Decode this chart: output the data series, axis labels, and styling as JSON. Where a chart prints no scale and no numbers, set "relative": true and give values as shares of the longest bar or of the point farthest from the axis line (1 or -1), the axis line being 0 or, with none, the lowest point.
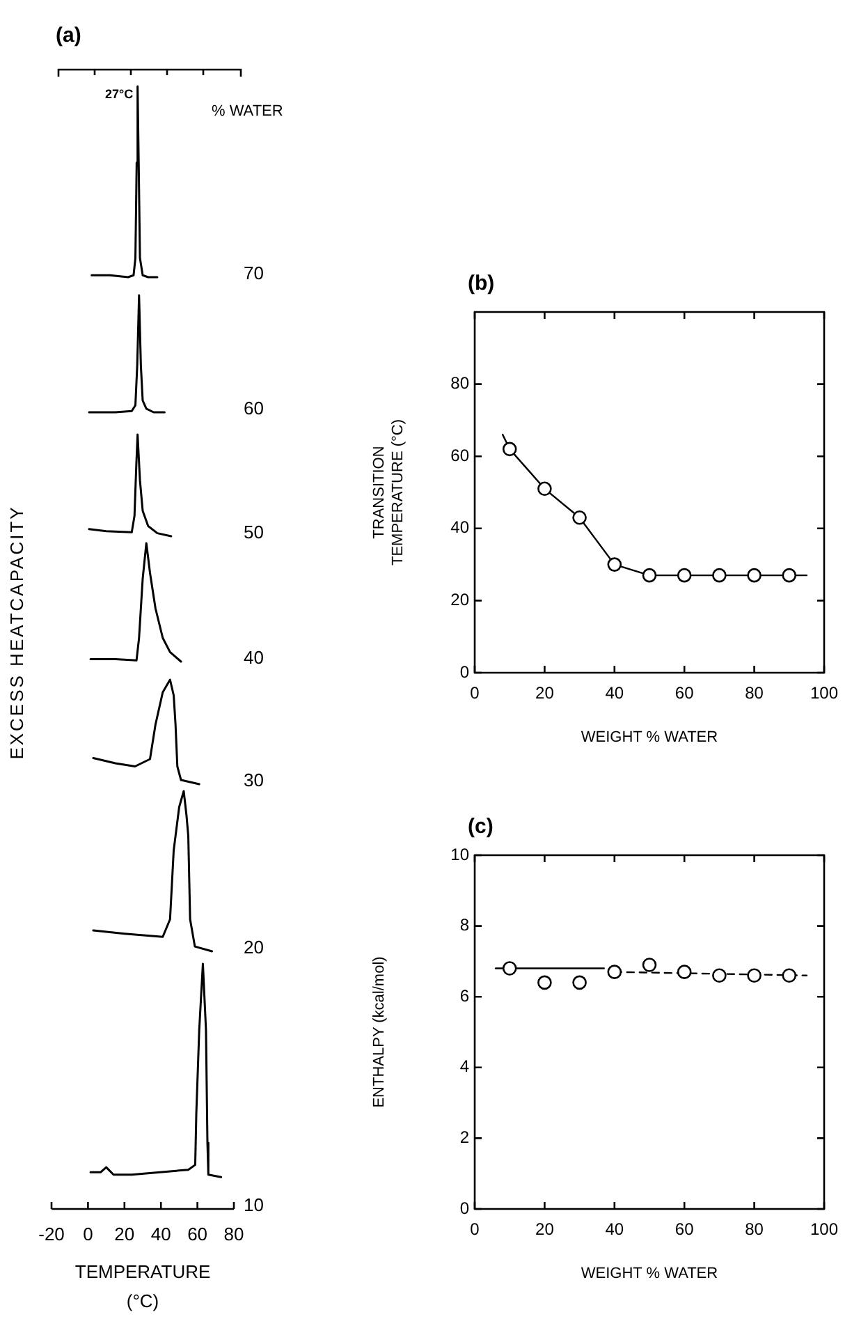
{
  "chart_data": [
    {
      "type": "line",
      "title": "(a)",
      "relative": true,
      "xlim": [
        -20,
        80
      ],
      "tick_labels": false,
      "annotations": [
        {
          "text": "27°C",
          "x": 27
        },
        "% WATER"
      ],
      "series": [
        {
          "name": "70",
          "color": "#000000",
          "x": [
            2,
            12,
            22,
            25,
            26,
            26.7,
            27.2,
            27.8,
            28.5,
            30,
            33,
            38
          ],
          "values": [
            0.01,
            0.01,
            0,
            0.01,
            0.1,
            0.6,
            1,
            0.6,
            0.1,
            0.01,
            0,
            0
          ]
        }
      ]
    },
    {
      "type": "line",
      "relative": true,
      "xlim": [
        -20,
        80
      ],
      "tick_labels": false,
      "series": [
        {
          "name": "60",
          "color": "#000000",
          "x": [
            0.6,
            15,
            24,
            26,
            27,
            28,
            29,
            30,
            32,
            36,
            42
          ],
          "values": [
            0,
            0,
            0.01,
            0.06,
            0.4,
            1,
            0.4,
            0.1,
            0.03,
            0,
            0
          ]
        }
      ]
    },
    {
      "type": "line",
      "relative": true,
      "xlim": [
        -20,
        80
      ],
      "tick_labels": false,
      "series": [
        {
          "name": "50",
          "color": "#000000",
          "x": [
            0.6,
            10,
            24,
            25.5,
            26.5,
            27.2,
            28.5,
            30,
            33,
            38,
            45.6
          ],
          "values": [
            0.07,
            0.05,
            0.04,
            0.2,
            0.7,
            1,
            0.55,
            0.25,
            0.1,
            0.03,
            0
          ]
        }
      ]
    },
    {
      "type": "line",
      "relative": true,
      "xlim": [
        -20,
        80
      ],
      "tick_labels": false,
      "ylabel": "EXCESS HEATCAPACITY",
      "series": [
        {
          "name": "40",
          "color": "#000000",
          "x": [
            1.4,
            15,
            26.6,
            28,
            30,
            32,
            34,
            37,
            41,
            45,
            51
          ],
          "values": [
            0.02,
            0.02,
            0.01,
            0.2,
            0.7,
            1,
            0.75,
            0.45,
            0.2,
            0.08,
            0
          ]
        }
      ]
    },
    {
      "type": "line",
      "relative": true,
      "xlim": [
        -20,
        80
      ],
      "tick_labels": false,
      "series": [
        {
          "name": "30",
          "color": "#000000",
          "x": [
            2.9,
            15,
            25.8,
            34,
            37,
            41,
            45,
            47,
            48,
            49,
            51,
            61
          ],
          "values": [
            0.25,
            0.2,
            0.17,
            0.24,
            0.57,
            0.88,
            1,
            0.85,
            0.57,
            0.17,
            0.04,
            0
          ]
        }
      ]
    },
    {
      "type": "line",
      "relative": true,
      "xlim": [
        -20,
        80
      ],
      "tick_labels": false,
      "series": [
        {
          "name": "20",
          "color": "#000000",
          "x": [
            2.9,
            20,
            41,
            45,
            47,
            50,
            52.5,
            54,
            55,
            56,
            58.6,
            68
          ],
          "values": [
            0.13,
            0.11,
            0.09,
            0.2,
            0.63,
            0.9,
            1,
            0.85,
            0.72,
            0.2,
            0.03,
            0
          ]
        }
      ]
    },
    {
      "type": "line",
      "relative": true,
      "xlim": [
        -20,
        80
      ],
      "xticks": [
        -20,
        0,
        20,
        40,
        60,
        80
      ],
      "xlabel": "TEMPERATURE (°C)",
      "tick_labels": "x",
      "series": [
        {
          "name": "10",
          "color": "#000000",
          "x": [
            1.4,
            7,
            10,
            14,
            24,
            55,
            58.8,
            59.4,
            61,
            63,
            64.7,
            65.5,
            66,
            73
          ],
          "values": [
            0.15,
            0.15,
            0.17,
            0.14,
            0.14,
            0.16,
            0.18,
            0.39,
            0.73,
            1,
            0.73,
            0.27,
            0.14,
            0.13
          ]
        }
      ]
    },
    {
      "type": "scatter",
      "title": "(b)",
      "xlabel": "WEIGHT % WATER",
      "ylabel": "TRANSITION TEMPERATURE (°C)",
      "xlim": [
        0,
        100
      ],
      "xticks": [
        0,
        20,
        40,
        60,
        80,
        100
      ],
      "ylim": [
        0,
        100
      ],
      "yticks": [
        0,
        20,
        40,
        60,
        80
      ],
      "series": [
        {
          "type": "line",
          "color": "#000000",
          "x": [
            8,
            10,
            20,
            30,
            40,
            50,
            60,
            70,
            80,
            90,
            95
          ],
          "values": [
            66,
            62,
            51,
            43,
            30,
            27,
            27,
            27,
            27,
            27,
            27
          ]
        },
        {
          "color": "#000000",
          "marker": "circle",
          "x": [
            10,
            20,
            30,
            40,
            50,
            60,
            70,
            80,
            90
          ],
          "values": [
            62,
            51,
            43,
            30,
            27,
            27,
            27,
            27,
            27
          ]
        }
      ]
    },
    {
      "type": "scatter",
      "title": "(c)",
      "xlabel": "WEIGHT % WATER",
      "ylabel": "ENTHALPY (kcal/mol)",
      "xlim": [
        0,
        100
      ],
      "xticks": [
        0,
        20,
        40,
        60,
        80,
        100
      ],
      "ylim": [
        0,
        10
      ],
      "yticks": [
        0,
        2,
        4,
        6,
        8,
        10
      ],
      "series": [
        {
          "type": "line",
          "color": "#000000",
          "x": [
            6,
            37
          ],
          "values": [
            6.8,
            6.8
          ]
        },
        {
          "type": "line",
          "color": "#000000",
          "line_style": "dashed",
          "x": [
            40,
            95
          ],
          "values": [
            6.7,
            6.6
          ]
        },
        {
          "color": "#000000",
          "marker": "circle",
          "x": [
            10,
            20,
            30,
            40,
            50,
            60,
            70,
            80,
            90
          ],
          "values": [
            6.8,
            6.4,
            6.4,
            6.7,
            6.9,
            6.7,
            6.6,
            6.6,
            6.6
          ]
        }
      ]
    }
  ]
}
